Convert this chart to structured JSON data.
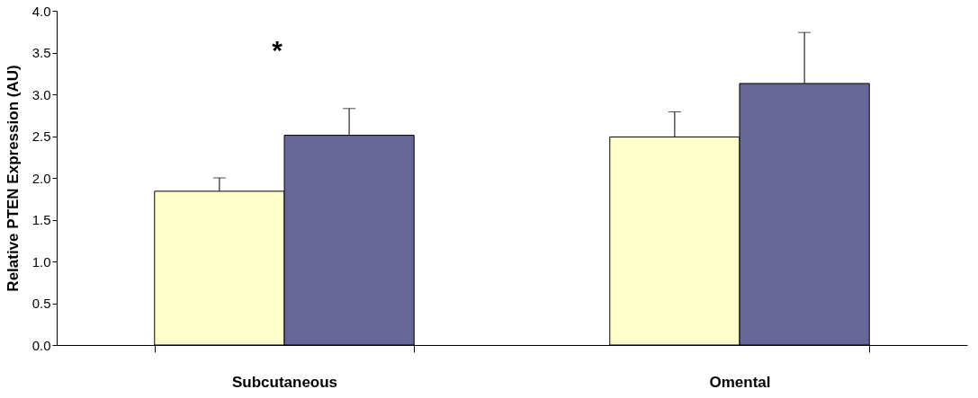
{
  "chart_data": {
    "type": "bar",
    "ylabel": "Relative PTEN Expression (AU)",
    "categories": [
      "Subcutaneous",
      "Omental"
    ],
    "series": [
      {
        "color": "#ffffcc",
        "values": [
          1.84,
          2.49
        ],
        "errors": [
          [
            1.84,
            2.0
          ],
          [
            2.49,
            2.79
          ]
        ]
      },
      {
        "color": "#666699",
        "values": [
          2.51,
          3.13
        ],
        "errors": [
          [
            2.51,
            2.83
          ],
          [
            3.13,
            3.74
          ]
        ]
      }
    ],
    "ylim": [
      0,
      4
    ],
    "yticks": [
      {
        "value": 0,
        "label": "0.0"
      },
      {
        "value": 0.5,
        "label": "0.5"
      },
      {
        "value": 1,
        "label": "1.0"
      },
      {
        "value": 1.5,
        "label": "1.5"
      },
      {
        "value": 2,
        "label": "2.0"
      },
      {
        "value": 2.5,
        "label": "2.5"
      },
      {
        "value": 3,
        "label": "3.0"
      },
      {
        "value": 3.5,
        "label": "3.5"
      },
      {
        "value": 4,
        "label": "4.0"
      }
    ],
    "grid": false,
    "legend": false,
    "annotations": [
      "*"
    ]
  }
}
